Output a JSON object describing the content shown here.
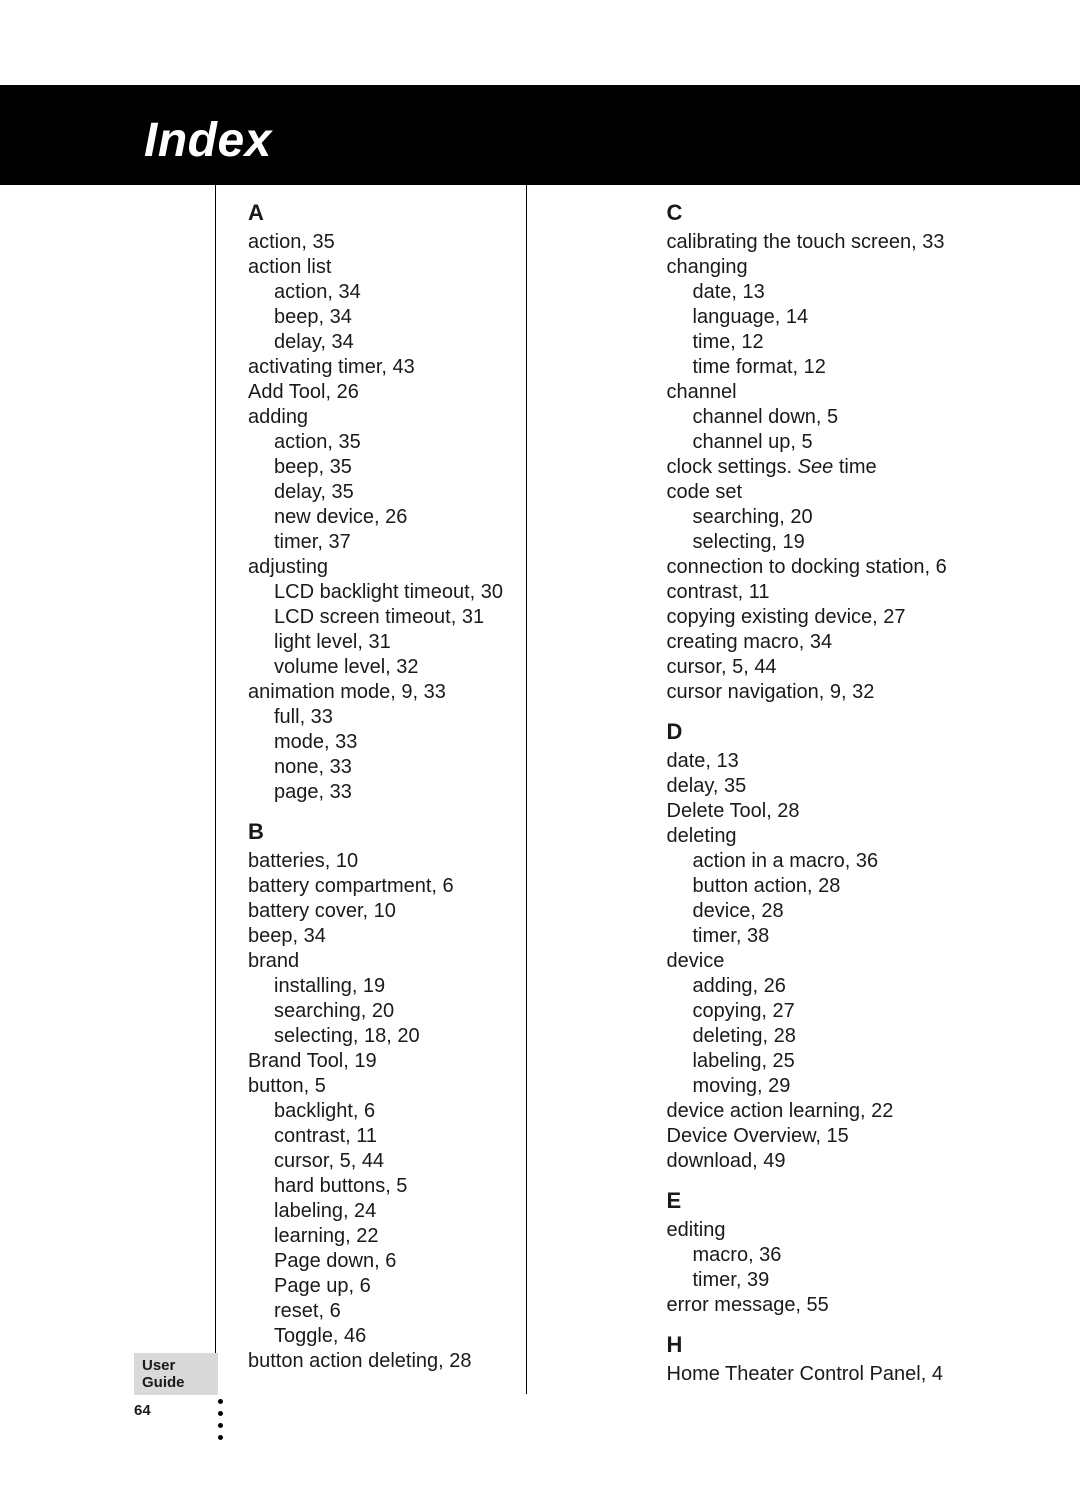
{
  "title": "Index",
  "footer_label": "User Guide",
  "page_number": "64",
  "columns": {
    "left": [
      {
        "type": "letter",
        "text": "A"
      },
      {
        "type": "entry",
        "text": "action, 35"
      },
      {
        "type": "entry",
        "text": "action list"
      },
      {
        "type": "sub",
        "text": "action, 34"
      },
      {
        "type": "sub",
        "text": "beep, 34"
      },
      {
        "type": "sub",
        "text": "delay, 34"
      },
      {
        "type": "entry",
        "text": "activating timer, 43"
      },
      {
        "type": "entry",
        "text": "Add Tool, 26"
      },
      {
        "type": "entry",
        "text": "adding"
      },
      {
        "type": "sub",
        "text": "action, 35"
      },
      {
        "type": "sub",
        "text": "beep, 35"
      },
      {
        "type": "sub",
        "text": "delay, 35"
      },
      {
        "type": "sub",
        "text": "new device, 26"
      },
      {
        "type": "sub",
        "text": "timer, 37"
      },
      {
        "type": "entry",
        "text": "adjusting"
      },
      {
        "type": "sub",
        "text": "LCD backlight timeout, 30"
      },
      {
        "type": "sub",
        "text": "LCD screen timeout, 31"
      },
      {
        "type": "sub",
        "text": "light level, 31"
      },
      {
        "type": "sub",
        "text": "volume level, 32"
      },
      {
        "type": "entry",
        "text": "animation mode, 9, 33"
      },
      {
        "type": "sub",
        "text": "full, 33"
      },
      {
        "type": "sub",
        "text": "mode, 33"
      },
      {
        "type": "sub",
        "text": "none, 33"
      },
      {
        "type": "sub",
        "text": "page, 33"
      },
      {
        "type": "letter",
        "text": "B"
      },
      {
        "type": "entry",
        "text": "batteries, 10"
      },
      {
        "type": "entry",
        "text": "battery compartment, 6"
      },
      {
        "type": "entry",
        "text": "battery cover, 10"
      },
      {
        "type": "entry",
        "text": "beep, 34"
      },
      {
        "type": "entry",
        "text": "brand"
      },
      {
        "type": "sub",
        "text": "installing, 19"
      },
      {
        "type": "sub",
        "text": "searching, 20"
      },
      {
        "type": "sub",
        "text": "selecting, 18, 20"
      },
      {
        "type": "entry",
        "text": "Brand Tool, 19"
      },
      {
        "type": "entry",
        "text": "button, 5"
      },
      {
        "type": "sub",
        "text": "backlight, 6"
      },
      {
        "type": "sub",
        "text": "contrast, 11"
      },
      {
        "type": "sub",
        "text": "cursor, 5, 44"
      },
      {
        "type": "sub",
        "text": "hard buttons, 5"
      },
      {
        "type": "sub",
        "text": "labeling, 24"
      },
      {
        "type": "sub",
        "text": "learning, 22"
      },
      {
        "type": "sub",
        "text": "Page down, 6"
      },
      {
        "type": "sub",
        "text": "Page up, 6"
      },
      {
        "type": "sub",
        "text": "reset, 6"
      },
      {
        "type": "sub",
        "text": "Toggle, 46"
      },
      {
        "type": "entry",
        "text": "button action deleting, 28"
      }
    ],
    "right": [
      {
        "type": "letter",
        "text": "C"
      },
      {
        "type": "entry",
        "text": "calibrating the touch screen, 33"
      },
      {
        "type": "entry",
        "text": "changing"
      },
      {
        "type": "sub",
        "text": "date, 13"
      },
      {
        "type": "sub",
        "text": "language, 14"
      },
      {
        "type": "sub",
        "text": "time, 12"
      },
      {
        "type": "sub",
        "text": "time format, 12"
      },
      {
        "type": "entry",
        "text": "channel"
      },
      {
        "type": "sub",
        "text": "channel down, 5"
      },
      {
        "type": "sub",
        "text": "channel up, 5"
      },
      {
        "type": "entry",
        "text": "clock settings. ",
        "italic_tail": "See",
        "tail": " time"
      },
      {
        "type": "entry",
        "text": "code set"
      },
      {
        "type": "sub",
        "text": "searching, 20"
      },
      {
        "type": "sub",
        "text": "selecting, 19"
      },
      {
        "type": "entry",
        "text": "connection to docking station, 6"
      },
      {
        "type": "entry",
        "text": "contrast, 11"
      },
      {
        "type": "entry",
        "text": "copying existing device, 27"
      },
      {
        "type": "entry",
        "text": "creating macro, 34"
      },
      {
        "type": "entry",
        "text": "cursor, 5, 44"
      },
      {
        "type": "entry",
        "text": "cursor navigation, 9, 32"
      },
      {
        "type": "letter",
        "text": "D"
      },
      {
        "type": "entry",
        "text": "date, 13"
      },
      {
        "type": "entry",
        "text": "delay, 35"
      },
      {
        "type": "entry",
        "text": "Delete Tool, 28"
      },
      {
        "type": "entry",
        "text": "deleting"
      },
      {
        "type": "sub",
        "text": "action in a macro, 36"
      },
      {
        "type": "sub",
        "text": "button action, 28"
      },
      {
        "type": "sub",
        "text": "device, 28"
      },
      {
        "type": "sub",
        "text": "timer, 38"
      },
      {
        "type": "entry",
        "text": "device"
      },
      {
        "type": "sub",
        "text": "adding, 26"
      },
      {
        "type": "sub",
        "text": "copying, 27"
      },
      {
        "type": "sub",
        "text": "deleting, 28"
      },
      {
        "type": "sub",
        "text": "labeling, 25"
      },
      {
        "type": "sub",
        "text": "moving, 29"
      },
      {
        "type": "entry",
        "text": "device action learning, 22"
      },
      {
        "type": "entry",
        "text": "Device Overview, 15"
      },
      {
        "type": "entry",
        "text": "download, 49"
      },
      {
        "type": "letter",
        "text": "E"
      },
      {
        "type": "entry",
        "text": "editing"
      },
      {
        "type": "sub",
        "text": "macro, 36"
      },
      {
        "type": "sub",
        "text": "timer, 39"
      },
      {
        "type": "entry",
        "text": "error message, 55"
      },
      {
        "type": "letter",
        "text": "H"
      },
      {
        "type": "entry",
        "text": "Home Theater Control Panel, 4"
      }
    ]
  }
}
